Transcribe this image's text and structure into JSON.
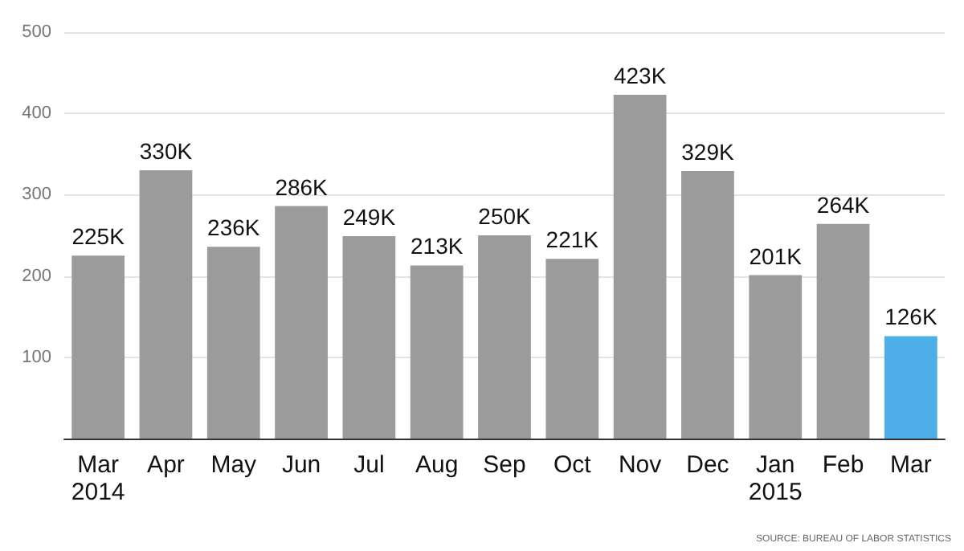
{
  "chart_data": {
    "type": "bar",
    "categories": [
      "Mar\n2014",
      "Apr",
      "May",
      "Jun",
      "Jul",
      "Aug",
      "Sep",
      "Oct",
      "Nov",
      "Dec",
      "Jan\n2015",
      "Feb",
      "Mar"
    ],
    "values": [
      225,
      330,
      236,
      286,
      249,
      213,
      250,
      221,
      423,
      329,
      201,
      264,
      126
    ],
    "colors": [
      "#9b9b9b",
      "#9b9b9b",
      "#9b9b9b",
      "#9b9b9b",
      "#9b9b9b",
      "#9b9b9b",
      "#9b9b9b",
      "#9b9b9b",
      "#9b9b9b",
      "#9b9b9b",
      "#9b9b9b",
      "#9b9b9b",
      "#4eaeea"
    ],
    "value_labels": [
      "225K",
      "330K",
      "236K",
      "286K",
      "249K",
      "213K",
      "250K",
      "221K",
      "423K",
      "329K",
      "201K",
      "264K",
      "126K"
    ],
    "ylim": [
      0,
      500
    ],
    "yticks": [
      100,
      200,
      300,
      400,
      500
    ],
    "grid": "y",
    "annotations": [
      "SOURCE: BUREAU OF LABOR STATISTICS"
    ]
  }
}
